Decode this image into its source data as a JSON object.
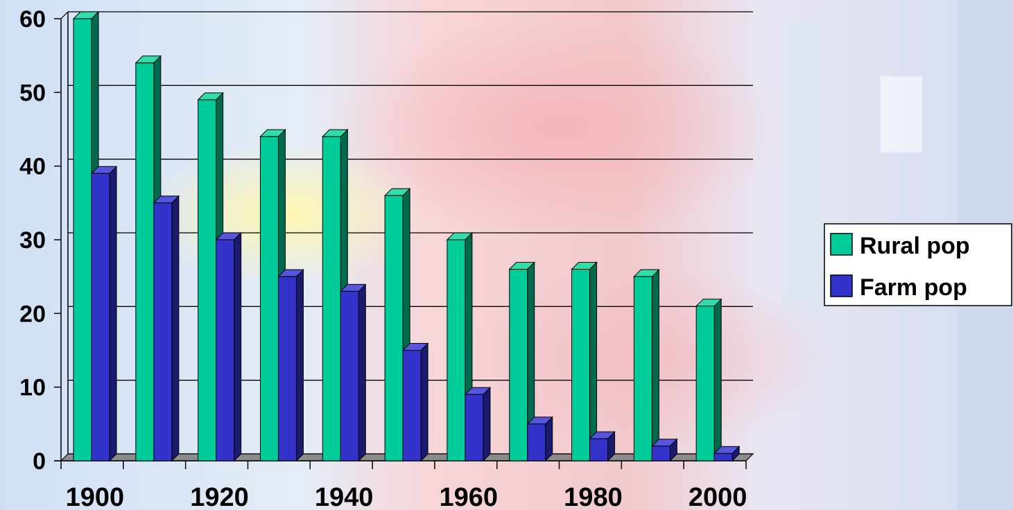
{
  "colors": {
    "rural_front": "#00cc99",
    "rural_side": "#006a4e",
    "rural_top": "#33ddaa",
    "farm_front": "#3333cc",
    "farm_side": "#1a1a6e",
    "farm_top": "#5555dd",
    "floor": "#8c8c8c"
  },
  "chart_data": {
    "type": "bar",
    "x": [
      1900,
      1910,
      1920,
      1930,
      1940,
      1950,
      1960,
      1970,
      1980,
      1990,
      2000
    ],
    "x_tick_labels": [
      "1900",
      "1920",
      "1940",
      "1960",
      "1980",
      "2000"
    ],
    "y_tick_labels": [
      "0",
      "10",
      "20",
      "30",
      "40",
      "50",
      "60"
    ],
    "ylim": [
      0,
      60
    ],
    "grid": true,
    "legend_position": "right",
    "series": [
      {
        "name": "Rural pop",
        "color_key": "rural",
        "values": [
          60,
          54,
          49,
          44,
          44,
          36,
          30,
          26,
          26,
          25,
          21
        ]
      },
      {
        "name": "Farm pop",
        "color_key": "farm",
        "values": [
          39,
          35,
          30,
          25,
          23,
          15,
          9,
          5,
          3,
          2,
          1
        ]
      }
    ]
  }
}
